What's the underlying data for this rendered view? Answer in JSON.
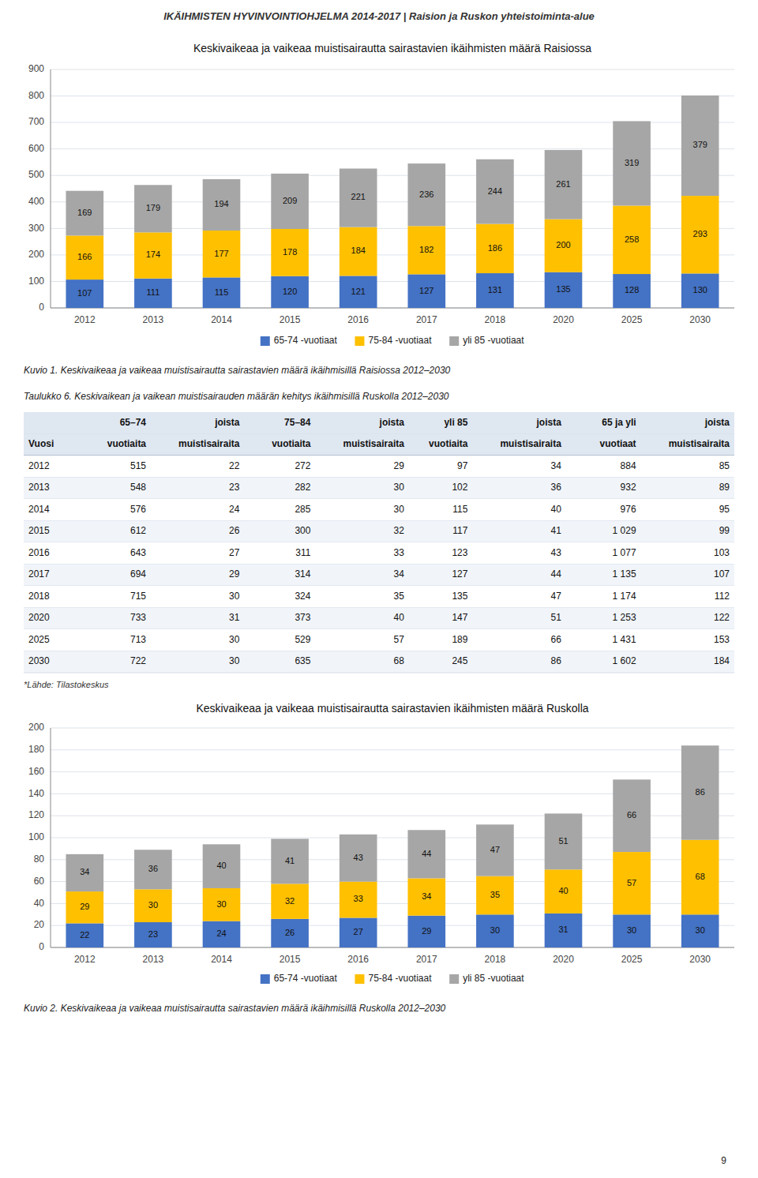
{
  "page_title": "IKÄIHMISTEN HYVINVOINTIOHJELMA 2014-2017 | Raision ja Ruskon yhteistoiminta-alue",
  "page_number": "9",
  "chart_data": [
    {
      "type": "bar",
      "title": "Keskivaikeaa ja vaikeaa muistisairautta sairastavien ikäihmisten määrä  Raisiossa",
      "caption": "Kuvio 1. Keskivaikeaa ja vaikeaa muistisairautta sairastavien määrä ikäihmisillä Raisiossa 2012–2030",
      "categories": [
        "2012",
        "2013",
        "2014",
        "2015",
        "2016",
        "2017",
        "2018",
        "2020",
        "2025",
        "2030"
      ],
      "series": [
        {
          "name": "65-74 -vuotiaat",
          "color": "#4472C4",
          "values": [
            107,
            111,
            115,
            120,
            121,
            127,
            131,
            135,
            128,
            130
          ]
        },
        {
          "name": "75-84 -vuotiaat",
          "color": "#FFC000",
          "values": [
            166,
            174,
            177,
            178,
            184,
            182,
            186,
            200,
            258,
            293
          ]
        },
        {
          "name": "yli 85 -vuotiaat",
          "color": "#A6A6A6",
          "values": [
            169,
            179,
            194,
            209,
            221,
            236,
            244,
            261,
            319,
            379
          ]
        }
      ],
      "stacked": true,
      "data_labels": true,
      "ylim": [
        0,
        900
      ],
      "yticks": [
        0,
        100,
        200,
        300,
        400,
        500,
        600,
        700,
        800,
        900
      ],
      "grid": true,
      "legend": "bottom"
    },
    {
      "type": "table",
      "title": "Taulukko 6. Keskivaikean ja vaikean muistisairauden määrän kehitys ikäihmisillä Ruskolla 2012–2030",
      "header": [
        [
          null,
          "65–74",
          "joista",
          "75–84",
          "joista",
          "yli 85",
          "joista",
          "65 ja yli",
          "joista"
        ],
        [
          "Vuosi",
          "vuotiaita",
          "muistisairaita",
          "vuotiaita",
          "muistisairaita",
          "vuotiaita",
          "muistisairaita",
          "vuotiaat",
          "muistisairaita"
        ]
      ],
      "rows": [
        [
          "2012",
          "515",
          "22",
          "272",
          "29",
          "97",
          "34",
          "884",
          "85"
        ],
        [
          "2013",
          "548",
          "23",
          "282",
          "30",
          "102",
          "36",
          "932",
          "89"
        ],
        [
          "2014",
          "576",
          "24",
          "285",
          "30",
          "115",
          "40",
          "976",
          "95"
        ],
        [
          "2015",
          "612",
          "26",
          "300",
          "32",
          "117",
          "41",
          "1 029",
          "99"
        ],
        [
          "2016",
          "643",
          "27",
          "311",
          "33",
          "123",
          "43",
          "1 077",
          "103"
        ],
        [
          "2017",
          "694",
          "29",
          "314",
          "34",
          "127",
          "44",
          "1 135",
          "107"
        ],
        [
          "2018",
          "715",
          "30",
          "324",
          "35",
          "135",
          "47",
          "1 174",
          "112"
        ],
        [
          "2020",
          "733",
          "31",
          "373",
          "40",
          "147",
          "51",
          "1 253",
          "122"
        ],
        [
          "2025",
          "713",
          "30",
          "529",
          "57",
          "189",
          "66",
          "1 431",
          "153"
        ],
        [
          "2030",
          "722",
          "30",
          "635",
          "68",
          "245",
          "86",
          "1 602",
          "184"
        ]
      ],
      "footnote": "*Lähde: Tilastokeskus"
    },
    {
      "type": "bar",
      "title": "Keskivaikeaa ja vaikeaa muistisairautta sairastavien ikäihmisten määrä Ruskolla",
      "caption": "Kuvio 2. Keskivaikeaa ja vaikeaa muistisairautta sairastavien määrä ikäihmisillä Ruskolla 2012–2030",
      "categories": [
        "2012",
        "2013",
        "2014",
        "2015",
        "2016",
        "2017",
        "2018",
        "2020",
        "2025",
        "2030"
      ],
      "series": [
        {
          "name": "65-74 -vuotiaat",
          "color": "#4472C4",
          "values": [
            22,
            23,
            24,
            26,
            27,
            29,
            30,
            31,
            30,
            30
          ]
        },
        {
          "name": "75-84 -vuotiaat",
          "color": "#FFC000",
          "values": [
            29,
            30,
            30,
            32,
            33,
            34,
            35,
            40,
            57,
            68
          ]
        },
        {
          "name": "yli 85 -vuotiaat",
          "color": "#A6A6A6",
          "values": [
            34,
            36,
            40,
            41,
            43,
            44,
            47,
            51,
            66,
            86
          ]
        }
      ],
      "stacked": true,
      "data_labels": true,
      "ylim": [
        0,
        200
      ],
      "yticks": [
        0,
        20,
        40,
        60,
        80,
        100,
        120,
        140,
        160,
        180,
        200
      ],
      "grid": true,
      "legend": "bottom"
    }
  ]
}
